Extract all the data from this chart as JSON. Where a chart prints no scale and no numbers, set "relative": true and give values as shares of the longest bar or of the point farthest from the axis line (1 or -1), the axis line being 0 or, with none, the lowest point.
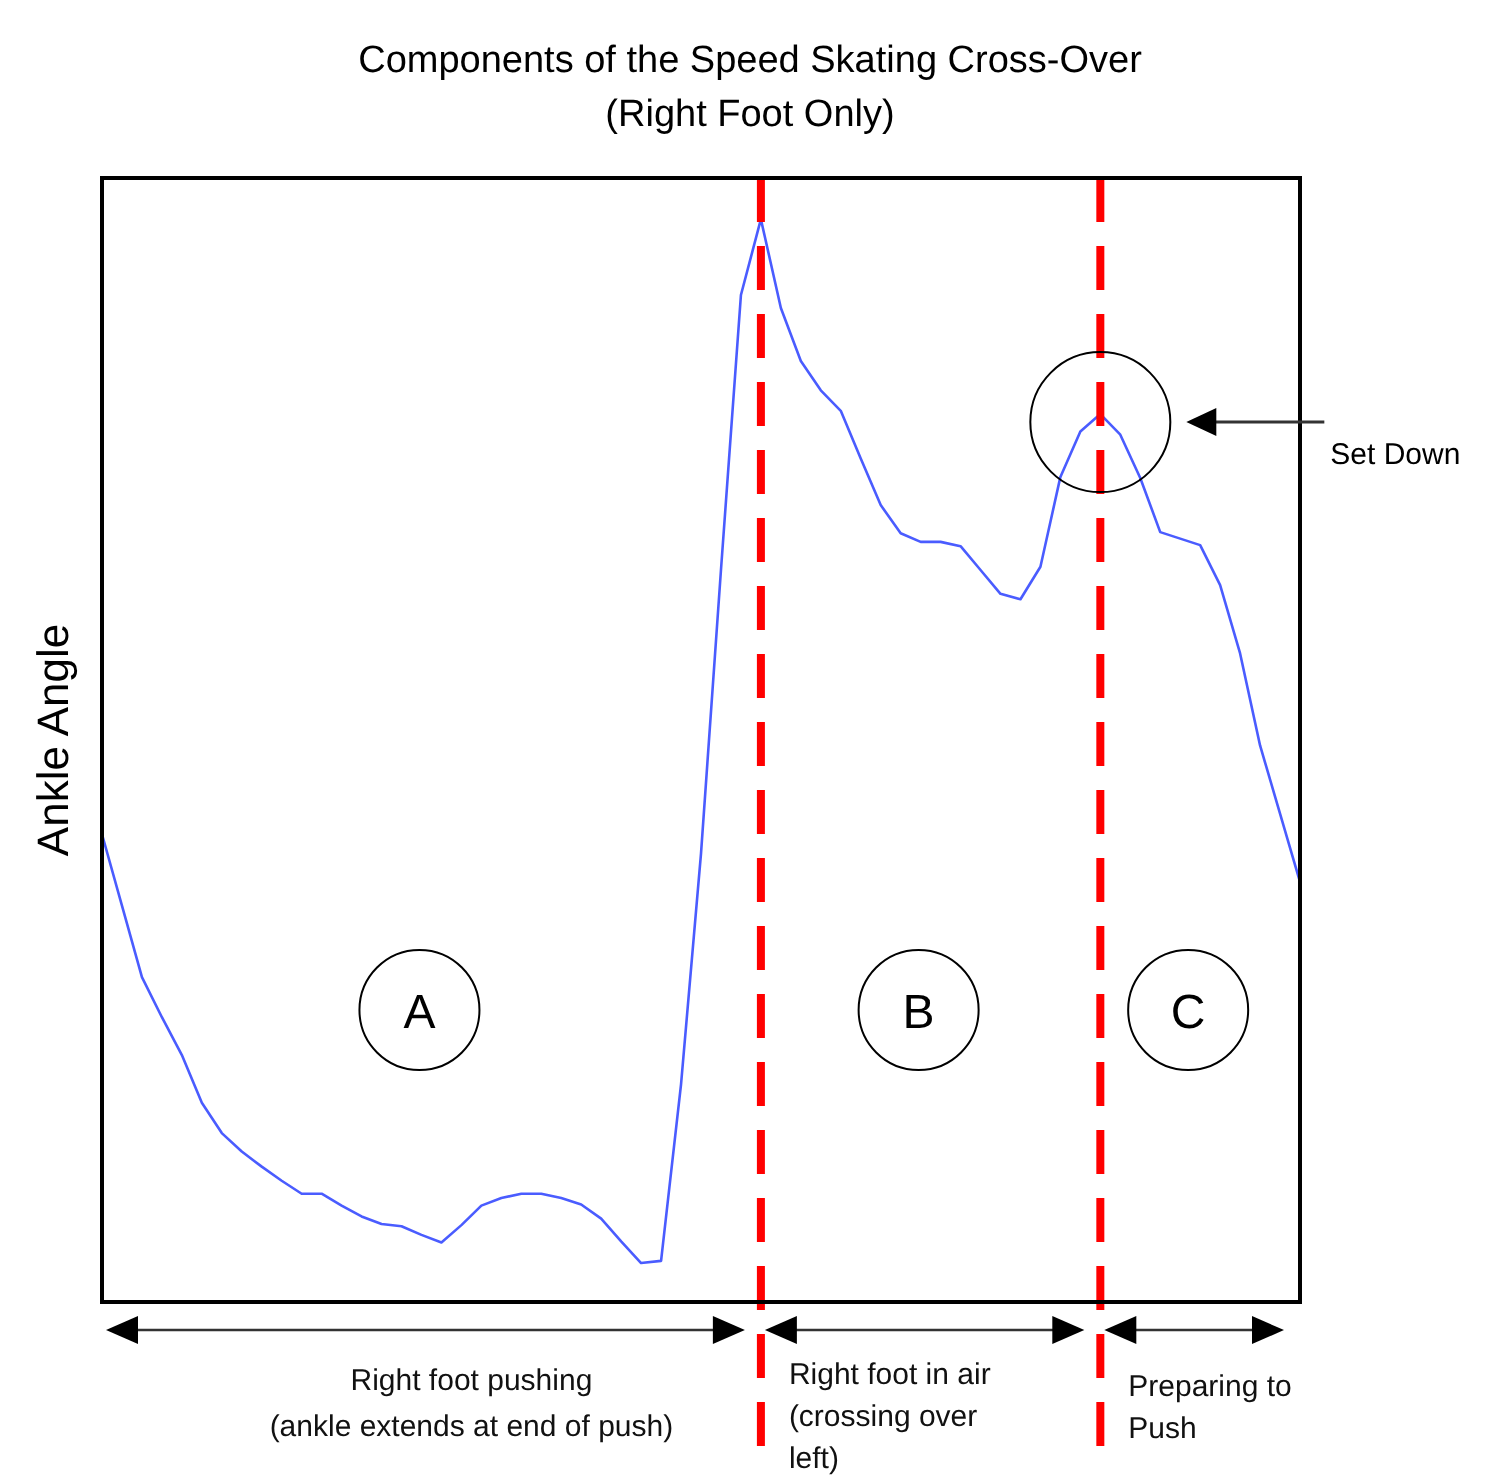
{
  "chart_data": {
    "type": "line",
    "title": "Components of the Speed Skating Cross-Over",
    "subtitle": "(Right Foot Only)",
    "ylabel": "Ankle Angle",
    "relative": true,
    "categories": [
      null,
      null,
      null,
      null,
      null,
      null,
      null,
      null,
      null,
      null,
      null,
      null,
      null,
      null,
      null,
      null,
      null,
      null,
      null,
      null,
      null,
      null,
      null,
      null,
      null,
      null,
      null,
      null,
      null,
      null,
      null,
      null,
      null,
      null,
      null,
      null,
      null,
      null,
      null,
      null,
      null,
      null,
      null,
      null,
      null,
      null,
      null,
      null,
      null,
      null,
      null,
      null,
      null,
      null,
      null,
      null,
      null,
      null,
      null,
      null,
      null
    ],
    "series": [
      {
        "color": "#4a5cff",
        "values": [
          0.432,
          0.366,
          0.3,
          0.263,
          0.228,
          0.184,
          0.156,
          0.139,
          0.125,
          0.112,
          0.1,
          0.1,
          0.089,
          0.079,
          0.072,
          0.07,
          0.062,
          0.055,
          0.071,
          0.089,
          0.096,
          0.1,
          0.1,
          0.096,
          0.09,
          0.077,
          0.056,
          0.036,
          0.038,
          0.201,
          0.414,
          0.676,
          0.93,
          1,
          0.918,
          0.869,
          0.842,
          0.823,
          0.779,
          0.736,
          0.71,
          0.702,
          0.702,
          0.698,
          0.676,
          0.654,
          0.649,
          0.679,
          0.762,
          0.804,
          0.82,
          0.801,
          0.761,
          0.711,
          0.705,
          0.699,
          0.662,
          0.599,
          0.514,
          0.451,
          0.388
        ]
      }
    ],
    "annotations": [
      "A",
      "B",
      "C",
      "Set Down",
      "Right foot pushing\n(ankle extends at end of push)",
      "Right foot in air\n(crossing over\nleft)",
      "Preparing to\nPush"
    ]
  }
}
